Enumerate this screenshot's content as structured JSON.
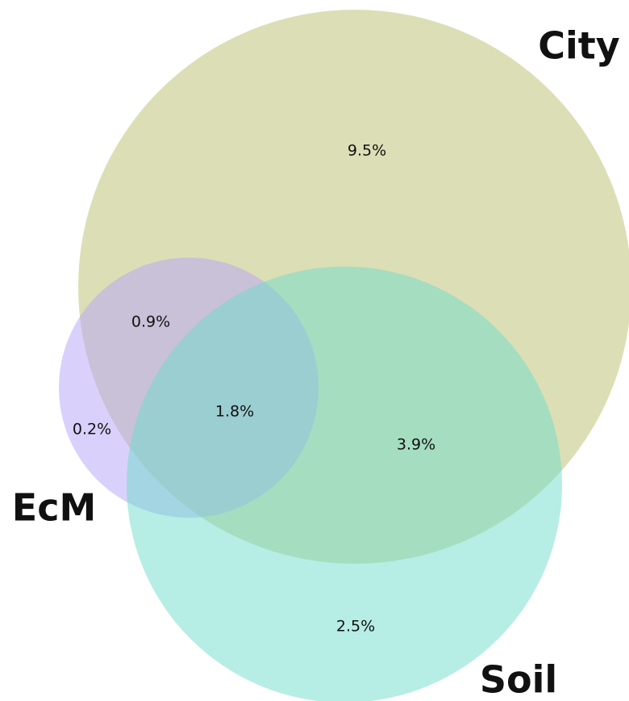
{
  "chart_data": {
    "type": "venn",
    "sets": [
      {
        "name": "City",
        "color": "#b9bd6e"
      },
      {
        "name": "EcM",
        "color": "#b4a4f7"
      },
      {
        "name": "Soil",
        "color": "#6ddcc9"
      }
    ],
    "values": [
      9.5,
      0.9,
      0.2,
      1.8,
      3.9,
      2.5
    ],
    "value_labels": [
      "9.5%",
      "0.9%",
      "0.2%",
      "1.8%",
      "3.9%",
      "2.5%"
    ]
  }
}
